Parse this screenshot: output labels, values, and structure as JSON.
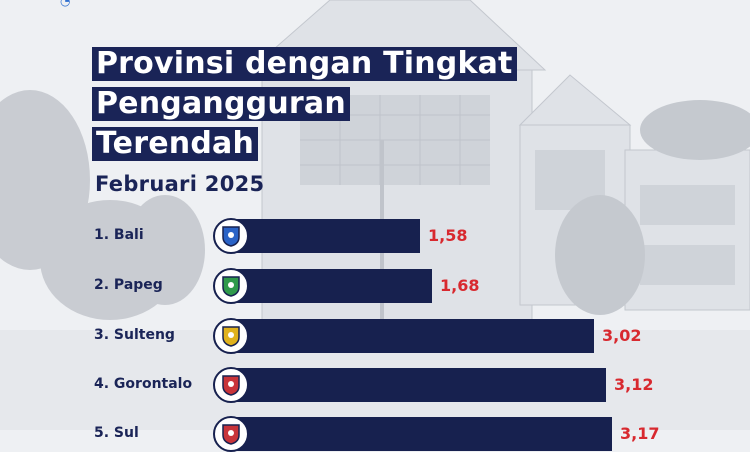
{
  "header": {
    "title_lines": [
      "Provinsi dengan Tingkat",
      "Pengangguran",
      "Terendah"
    ],
    "subtitle": "Februari 2025"
  },
  "chart_data": {
    "type": "bar",
    "orientation": "horizontal",
    "title": "Provinsi dengan Tingkat Pengangguran Terendah",
    "subtitle": "Februari 2025",
    "categories": [
      "1. Bali",
      "2. Papeg",
      "3. Sulteng",
      "4. Gorontalo",
      "5. Sul"
    ],
    "values": [
      1.58,
      1.68,
      3.02,
      3.12,
      3.17
    ],
    "value_labels": [
      "1,58",
      "1,68",
      "3,02",
      "3,12",
      "3,17"
    ],
    "bar_color": "#17214f",
    "value_color": "#d8292f",
    "emblems": [
      "bali-emblem-icon",
      "papua-pegunungan-emblem-icon",
      "sulteng-emblem-icon",
      "gorontalo-emblem-icon",
      "province-emblem-icon"
    ]
  }
}
